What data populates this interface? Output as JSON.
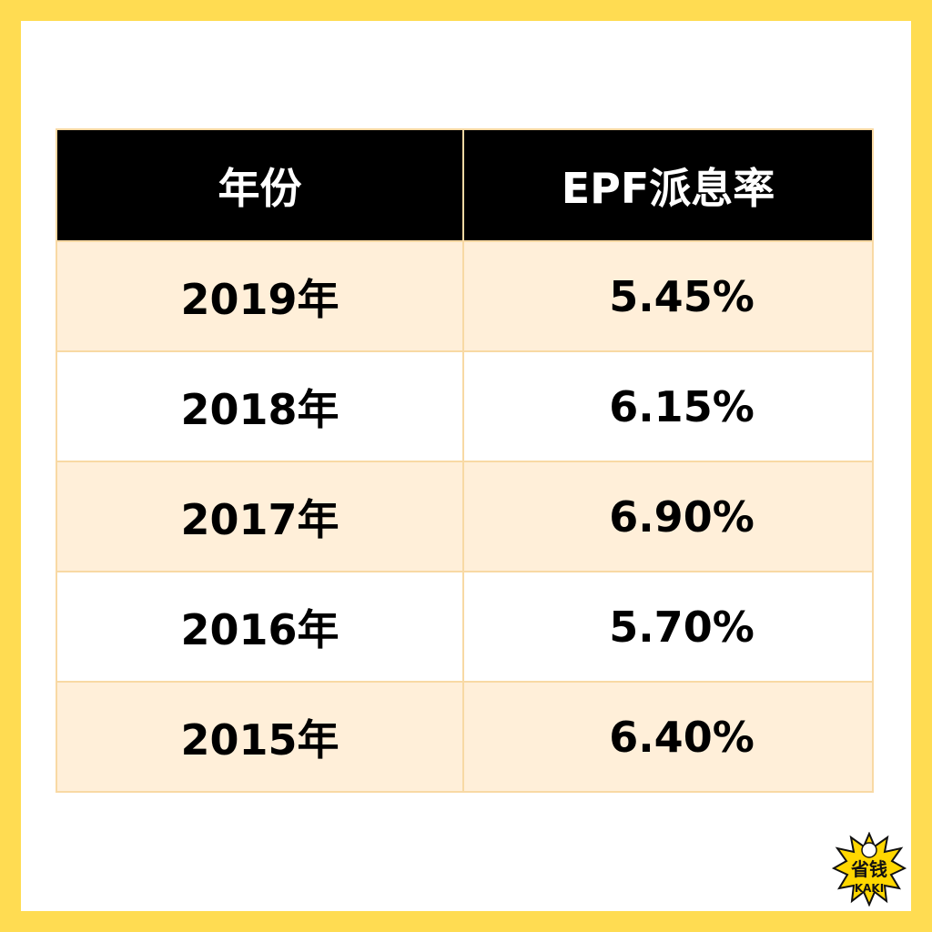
{
  "table": {
    "headers": [
      "年份",
      "EPF派息率"
    ],
    "rows": [
      {
        "year": "2019年",
        "rate": "5.45%"
      },
      {
        "year": "2018年",
        "rate": "6.15%"
      },
      {
        "year": "2017年",
        "rate": "6.90%"
      },
      {
        "year": "2016年",
        "rate": "5.70%"
      },
      {
        "year": "2015年",
        "rate": "6.40%"
      }
    ]
  },
  "logo": {
    "line1": "省钱",
    "line2": "KAKI"
  },
  "colors": {
    "frame": "#FFDC52",
    "header_bg": "#000000",
    "header_text": "#FFFFFF",
    "row_tint": "#FFEFD9",
    "border": "#F8D9A4"
  }
}
